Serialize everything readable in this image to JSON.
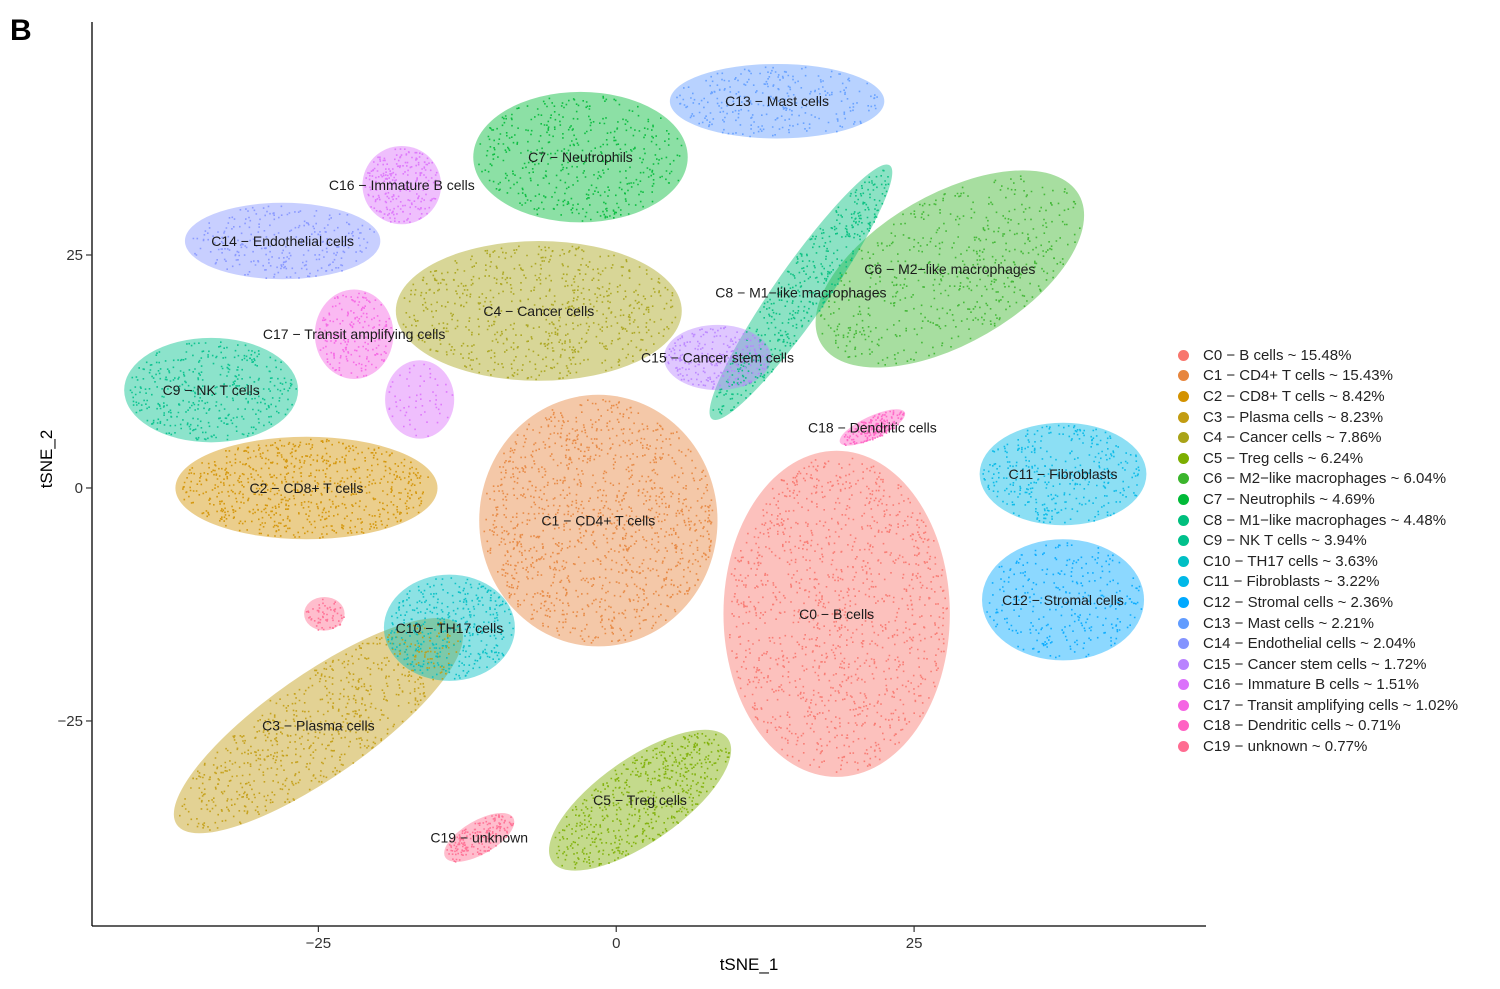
{
  "panel_label": "B",
  "chart_data": {
    "type": "scatter",
    "title": "",
    "xlabel": "tSNE_1",
    "ylabel": "tSNE_2",
    "xlim": [
      -44,
      49.5
    ],
    "ylim": [
      -47,
      50
    ],
    "xticks": [
      -25,
      0,
      25
    ],
    "yticks": [
      -25,
      0,
      25
    ],
    "grid": false,
    "legend_position": "right",
    "clusters": [
      {
        "id": "C0",
        "name": "C0 − B cells",
        "legend": "C0 − B cells ~ 15.48%",
        "percent": 15.48,
        "color": "#F8766D",
        "center": [
          18.5,
          -13.5
        ],
        "radius": [
          9.5,
          17.5
        ],
        "angle": 0
      },
      {
        "id": "C1",
        "name": "C1 − CD4+ T cells",
        "legend": "C1 − CD4+ T cells ~ 15.43%",
        "percent": 15.43,
        "color": "#E7853D",
        "center": [
          -1.5,
          -3.5
        ],
        "radius": [
          10,
          13.5
        ],
        "angle": 0
      },
      {
        "id": "C2",
        "name": "C2 − CD8+ T cells",
        "legend": "C2 − CD8+ T cells ~ 8.42%",
        "percent": 8.42,
        "color": "#D39200",
        "center": [
          -26,
          0
        ],
        "radius": [
          11,
          5.5
        ],
        "angle": 0
      },
      {
        "id": "C3",
        "name": "C3 − Plasma cells",
        "legend": "C3 − Plasma cells ~ 8.23%",
        "percent": 8.23,
        "color": "#C29C11",
        "center": [
          -25,
          -25.5
        ],
        "radius": [
          14.5,
          5.5
        ],
        "angle": -35
      },
      {
        "id": "C4",
        "name": "C4 − Cancer cells",
        "legend": "C4 − Cancer cells ~ 7.86%",
        "percent": 7.86,
        "color": "#A9A318",
        "center": [
          -6.5,
          19
        ],
        "radius": [
          12,
          7.5
        ],
        "angle": 0
      },
      {
        "id": "C5",
        "name": "C5 − Treg cells",
        "legend": "C5 − Treg cells ~ 6.24%",
        "percent": 6.24,
        "color": "#7CAE00",
        "center": [
          2,
          -33.5
        ],
        "radius": [
          9,
          4.5
        ],
        "angle": -35
      },
      {
        "id": "C6",
        "name": "C6 − M2−like macrophages",
        "legend": "C6 − M2−like macrophages ~ 6.04%",
        "percent": 6.04,
        "color": "#3BB52D",
        "center": [
          28,
          23.5
        ],
        "radius": [
          12.5,
          8
        ],
        "angle": -30
      },
      {
        "id": "C7",
        "name": "C7 − Neutrophils",
        "legend": "C7 − Neutrophils ~ 4.69%",
        "percent": 4.69,
        "color": "#00BA38",
        "center": [
          -3,
          35.5
        ],
        "radius": [
          9,
          7
        ],
        "angle": 0
      },
      {
        "id": "C8",
        "name": "C8 − M1−like macrophages",
        "legend": "C8 − M1−like macrophages ~ 4.48%",
        "percent": 4.48,
        "color": "#00BF7D",
        "center": [
          15.5,
          21
        ],
        "radius": [
          13,
          2.8
        ],
        "angle": -55
      },
      {
        "id": "C9",
        "name": "C9 − NK T cells",
        "legend": "C9 − NK T cells ~ 3.94%",
        "percent": 3.94,
        "color": "#00C08B",
        "center": [
          -34,
          10.5
        ],
        "radius": [
          7.3,
          5.6
        ],
        "angle": 0
      },
      {
        "id": "C10",
        "name": "C10 − TH17 cells",
        "legend": "C10 − TH17 cells ~ 3.63%",
        "percent": 3.63,
        "color": "#00BFC4",
        "center": [
          -14,
          -15
        ],
        "radius": [
          5.5,
          5.7
        ],
        "angle": 0
      },
      {
        "id": "C11",
        "name": "C11 − Fibroblasts",
        "legend": "C11 − Fibroblasts ~ 3.22%",
        "percent": 3.22,
        "color": "#00B8E7",
        "center": [
          37.5,
          1.5
        ],
        "radius": [
          7,
          5.5
        ],
        "angle": 0
      },
      {
        "id": "C12",
        "name": "C12 − Stromal cells",
        "legend": "C12 − Stromal cells ~ 2.36%",
        "percent": 2.36,
        "color": "#00A9FF",
        "center": [
          37.5,
          -12
        ],
        "radius": [
          6.8,
          6.5
        ],
        "angle": 0
      },
      {
        "id": "C13",
        "name": "C13 − Mast cells",
        "legend": "C13 − Mast cells ~ 2.21%",
        "percent": 2.21,
        "color": "#619CFF",
        "center": [
          13.5,
          41.5
        ],
        "radius": [
          9,
          4
        ],
        "angle": 0
      },
      {
        "id": "C14",
        "name": "C14 − Endothelial cells",
        "legend": "C14 − Endothelial cells ~ 2.04%",
        "percent": 2.04,
        "color": "#8494FF",
        "center": [
          -28,
          26.5
        ],
        "radius": [
          8.2,
          4.1
        ],
        "angle": 0
      },
      {
        "id": "C15",
        "name": "C15 − Cancer stem cells",
        "legend": "C15 − Cancer stem cells ~ 1.72%",
        "percent": 1.72,
        "color": "#B983FF",
        "center": [
          8.5,
          14
        ],
        "radius": [
          4.5,
          3.5
        ],
        "angle": 0
      },
      {
        "id": "C16",
        "name": "C16 − Immature B cells",
        "legend": "C16 − Immature B cells ~ 1.51%",
        "percent": 1.51,
        "color": "#DB72FB",
        "center": [
          -18,
          32.5
        ],
        "radius": [
          3.3,
          4.2
        ],
        "angle": 0
      },
      {
        "id": "C17",
        "name": "C17 − Transit amplifying cells",
        "legend": "C17 − Transit amplifying cells ~ 1.02%",
        "percent": 1.02,
        "color": "#F564E3",
        "center": [
          -22,
          16.5
        ],
        "radius": [
          3.3,
          4.8
        ],
        "angle": 0
      },
      {
        "id": "C18",
        "name": "C18 − Dendritic cells",
        "legend": "C18 − Dendritic cells ~ 0.71%",
        "percent": 0.71,
        "color": "#FF61C3",
        "center": [
          21.5,
          6.5
        ],
        "radius": [
          3,
          1.2
        ],
        "angle": -25
      },
      {
        "id": "C19",
        "name": "C19 − unknown",
        "legend": "C19 − unknown ~ 0.77%",
        "percent": 0.77,
        "color": "#FF6C91",
        "center": [
          -11.5,
          -37.5
        ],
        "radius": [
          3.3,
          1.8
        ],
        "angle": -30
      }
    ],
    "extra_islands": [
      {
        "cluster": "C16",
        "center": [
          -16.5,
          9.5
        ],
        "radius": [
          2.9,
          4.2
        ]
      },
      {
        "cluster": "C19",
        "center": [
          -24.5,
          -13.5
        ],
        "radius": [
          1.7,
          1.8
        ]
      }
    ]
  }
}
